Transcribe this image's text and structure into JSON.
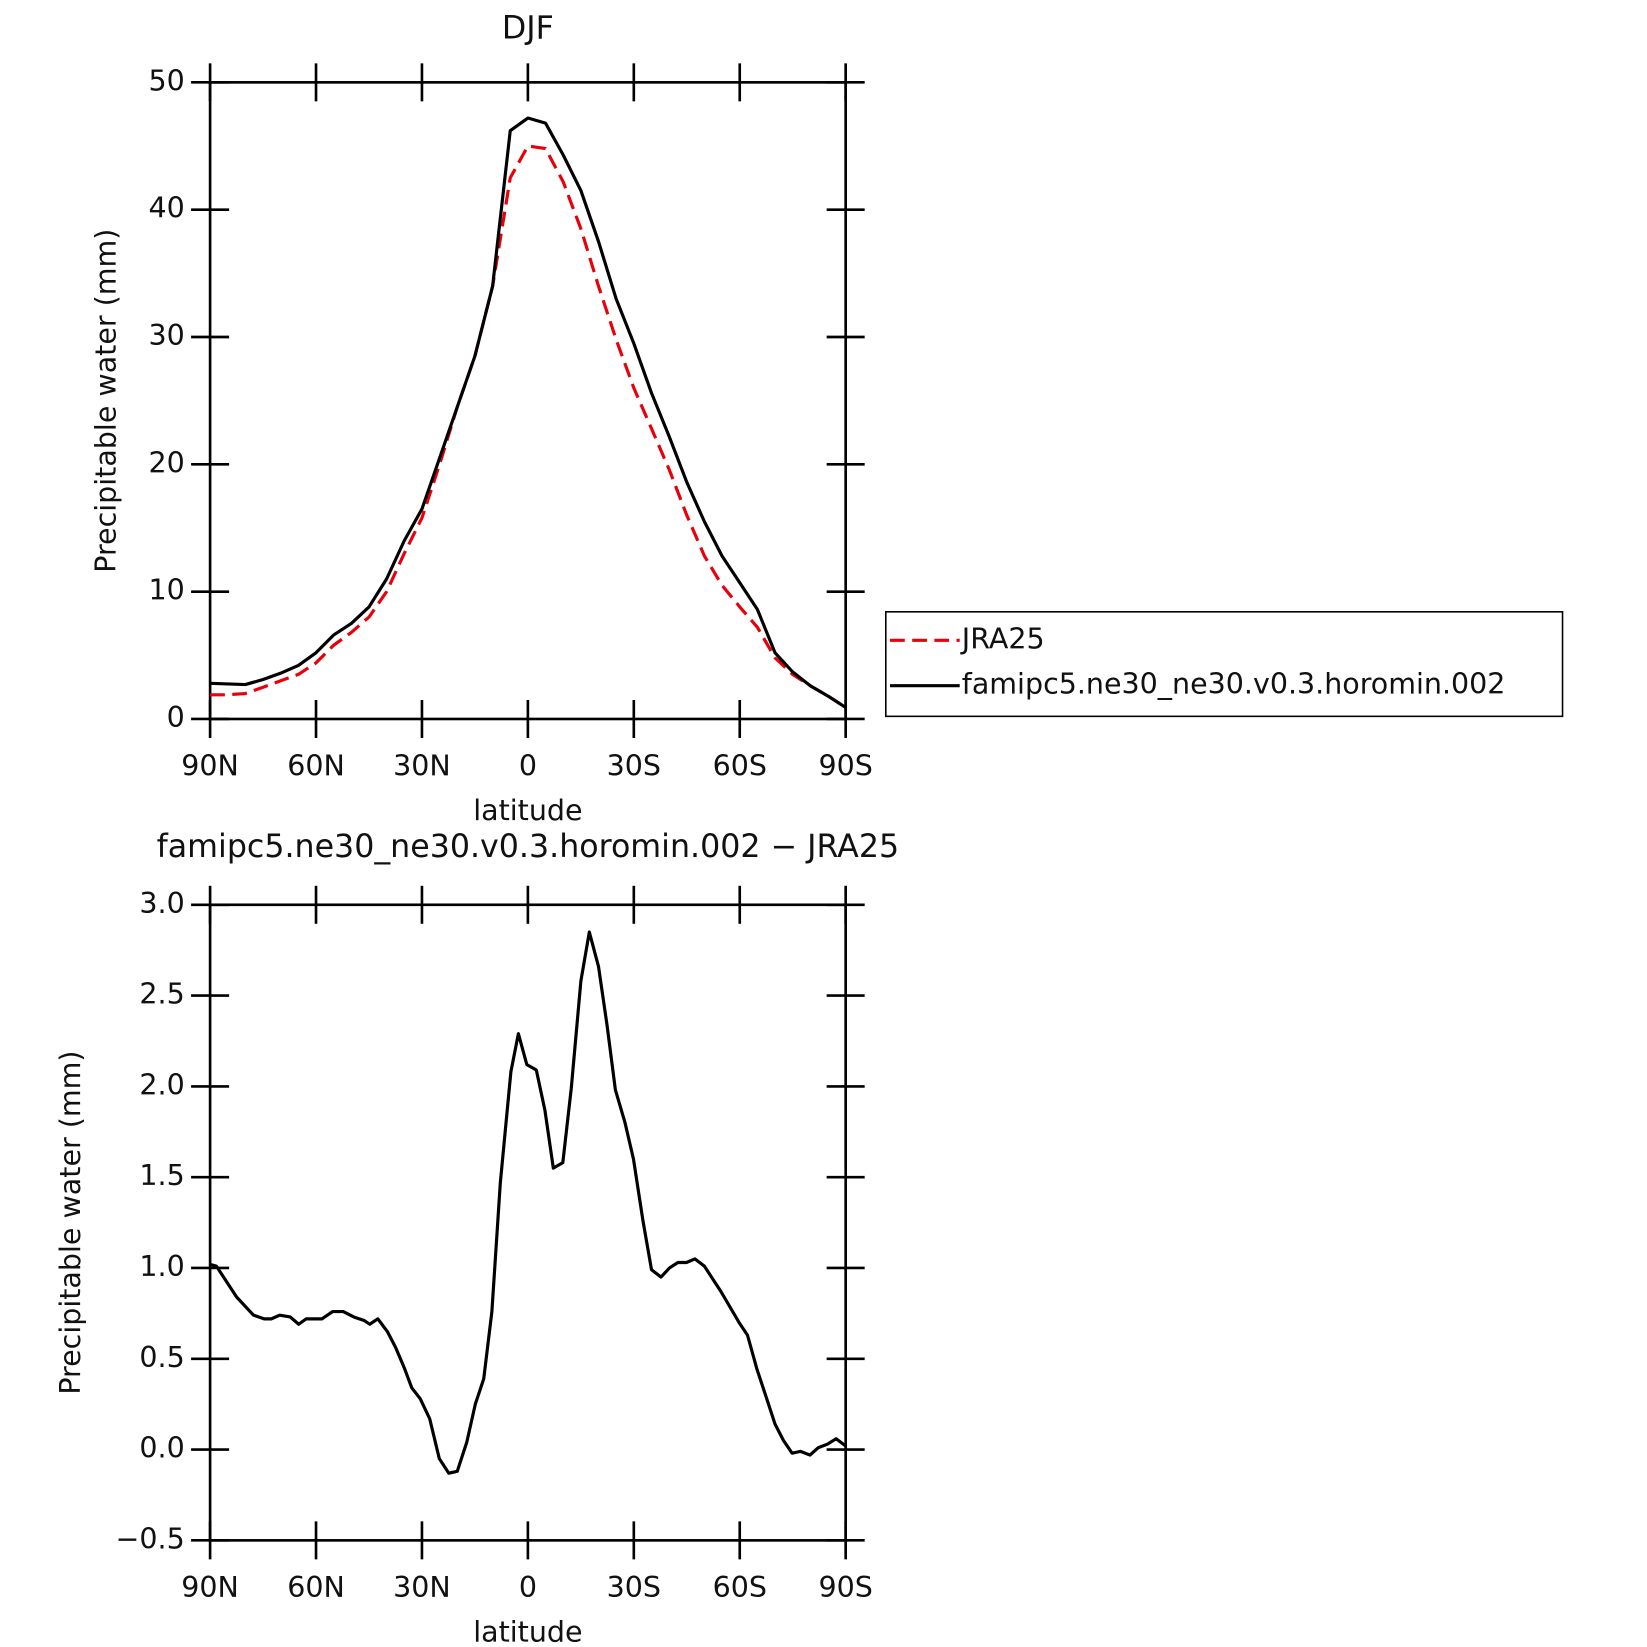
{
  "chart_data": [
    {
      "type": "line",
      "title": "DJF",
      "xlabel": "latitude",
      "ylabel": "Precipitable water (mm)",
      "x": [
        90,
        85,
        80,
        75,
        70,
        65,
        60,
        55,
        50,
        45,
        40,
        35,
        30,
        25,
        20,
        15,
        10,
        5,
        0,
        -5,
        -10,
        -15,
        -20,
        -25,
        -30,
        -35,
        -40,
        -45,
        -50,
        -55,
        -60,
        -65,
        -70,
        -75,
        -80,
        -85,
        -90
      ],
      "xlim": [
        90,
        -90
      ],
      "xticks": [
        {
          "value": 90,
          "label": "90N"
        },
        {
          "value": 60,
          "label": "60N"
        },
        {
          "value": 30,
          "label": "30N"
        },
        0,
        {
          "value": -30,
          "label": "30S"
        },
        {
          "value": -60,
          "label": "60S"
        },
        {
          "value": -90,
          "label": "90S"
        }
      ],
      "ylim": [
        0,
        50
      ],
      "yticks": [
        0,
        10,
        20,
        30,
        40,
        50
      ],
      "legend": "right",
      "series": [
        {
          "name": "JRA25",
          "color": "#e8000b",
          "linestyle": "dashed",
          "values": [
            1.9,
            1.9,
            2.0,
            2.5,
            3.0,
            3.5,
            4.4,
            5.8,
            6.8,
            8.0,
            10,
            13,
            15.8,
            20,
            24.5,
            28.5,
            34,
            42.5,
            45.0,
            44.8,
            42.2,
            38.5,
            34,
            29.8,
            26,
            22.8,
            19.6,
            16,
            12.8,
            10.5,
            8.8,
            7.2,
            4.8,
            3.5,
            2.6,
            1.8,
            0.9
          ]
        },
        {
          "name": "famipc5.ne30_ne30.v0.3.horomin.002",
          "color": "#000000",
          "linestyle": "solid",
          "values": [
            2.8,
            2.75,
            2.7,
            3.1,
            3.6,
            4.2,
            5.2,
            6.6,
            7.5,
            8.8,
            11,
            14,
            16.5,
            20.5,
            24.5,
            28.5,
            34,
            46.2,
            47.2,
            46.8,
            44.3,
            41.5,
            37.5,
            33,
            29.5,
            25.6,
            22.2,
            18.6,
            15.5,
            12.8,
            10.7,
            8.6,
            5.2,
            3.7,
            2.6,
            1.8,
            0.9
          ]
        }
      ]
    },
    {
      "type": "line",
      "title": "famipc5.ne30_ne30.v0.3.horomin.002 − JRA25",
      "xlabel": "latitude",
      "ylabel": "Precipitable water (mm)",
      "x": [
        90,
        88.2,
        85.2,
        82.5,
        77.7,
        74.7,
        72.7,
        70.3,
        67.3,
        64.9,
        62.8,
        58.3,
        55.3,
        52.3,
        49.3,
        46.3,
        44.8,
        42.5,
        39.8,
        37.4,
        35,
        32.9,
        30.5,
        27.8,
        25.1,
        22.4,
        20,
        17.3,
        14.9,
        12.5,
        10.2,
        7.8,
        4.8,
        2.7,
        0.3,
        -2.4,
        -4.8,
        -7.2,
        -9.9,
        -12.3,
        -15,
        -17.4,
        -20,
        -22.4,
        -24.8,
        -27.5,
        -29.9,
        -32.6,
        -35,
        -37.7,
        -40.1,
        -42.5,
        -44.9,
        -47.3,
        -50,
        -54.7,
        -59.8,
        -62.2,
        -64.9,
        -67.3,
        -70,
        -72.4,
        -74.8,
        -77.2,
        -79.9,
        -82.2,
        -84.9,
        -87.3,
        -90
      ],
      "xlim": [
        90,
        -90
      ],
      "xticks": [
        {
          "value": 90,
          "label": "90N"
        },
        {
          "value": 60,
          "label": "60N"
        },
        {
          "value": 30,
          "label": "30N"
        },
        0,
        {
          "value": -30,
          "label": "30S"
        },
        {
          "value": -60,
          "label": "60S"
        },
        {
          "value": -90,
          "label": "90S"
        }
      ],
      "ylim": [
        -0.5,
        3.0
      ],
      "yticks": [
        {
          "value": -0.5,
          "label": "−0.5"
        },
        {
          "value": 0,
          "label": "0.0"
        },
        {
          "value": 0.5,
          "label": "0.5"
        },
        {
          "value": 1,
          "label": "1.0"
        },
        {
          "value": 1.5,
          "label": "1.5"
        },
        {
          "value": 2,
          "label": "2.0"
        },
        {
          "value": 2.5,
          "label": "2.5"
        },
        {
          "value": 3,
          "label": "3.0"
        }
      ],
      "series": [
        {
          "color": "#000000",
          "linestyle": "solid",
          "values": [
            1.02,
            1.01,
            0.92,
            0.84,
            0.74,
            0.72,
            0.72,
            0.74,
            0.73,
            0.69,
            0.72,
            0.72,
            0.76,
            0.76,
            0.73,
            0.71,
            0.69,
            0.72,
            0.65,
            0.56,
            0.45,
            0.34,
            0.28,
            0.17,
            -0.05,
            -0.13,
            -0.12,
            0.04,
            0.25,
            0.39,
            0.76,
            1.47,
            2.08,
            2.29,
            2.12,
            2.09,
            1.87,
            1.55,
            1.58,
            1.99,
            2.58,
            2.85,
            2.66,
            2.34,
            1.98,
            1.8,
            1.6,
            1.26,
            0.99,
            0.95,
            1.0,
            1.03,
            1.03,
            1.05,
            1.01,
            0.87,
            0.7,
            0.63,
            0.44,
            0.3,
            0.14,
            0.05,
            -0.02,
            -0.01,
            -0.03,
            0.01,
            0.03,
            0.06,
            0.02
          ]
        }
      ]
    }
  ]
}
